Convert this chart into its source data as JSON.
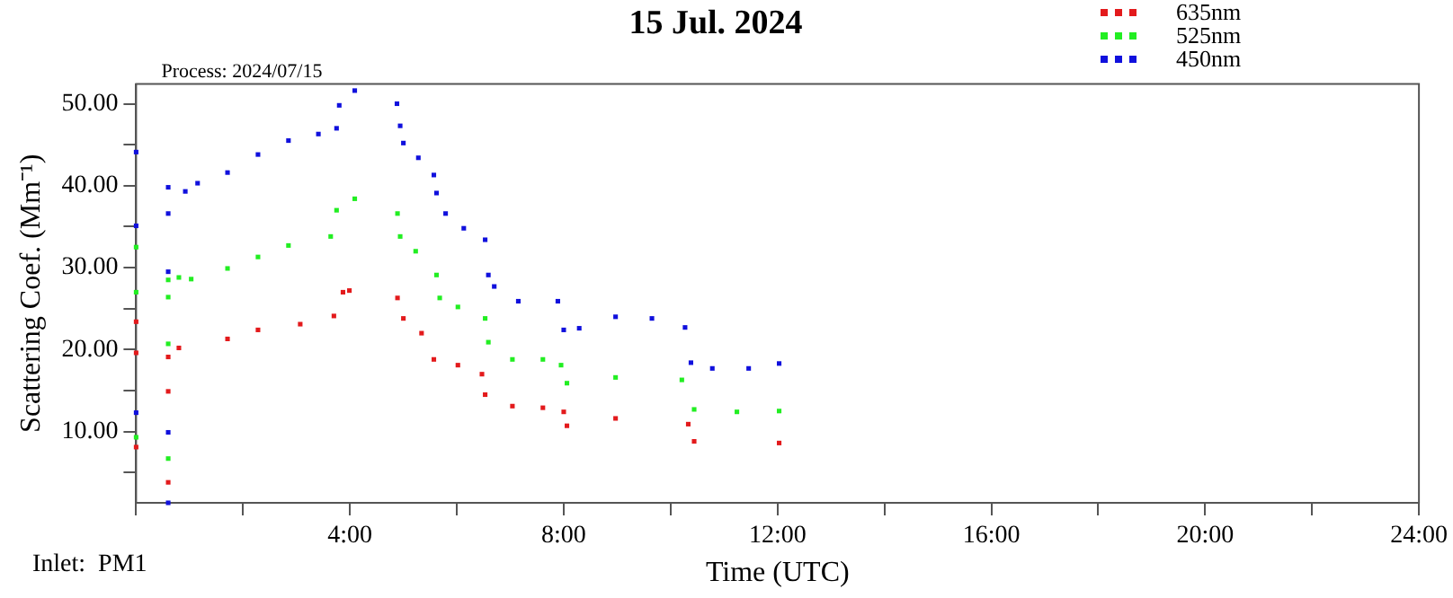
{
  "chart_data": {
    "type": "scatter",
    "title": "15 Jul. 2024",
    "xlabel": "Time (UTC)",
    "ylabel": "Scattering Coef. (Mm⁻¹)",
    "annotations": [
      "Process: 2024/07/15",
      "Inlet:  PM1"
    ],
    "xlim": [
      0,
      24
    ],
    "xticks": [
      {
        "value": 0,
        "label": null
      },
      {
        "value": 2,
        "label": null
      },
      {
        "value": 4,
        "label": "4:00"
      },
      {
        "value": 6,
        "label": null
      },
      {
        "value": 8,
        "label": "8:00"
      },
      {
        "value": 10,
        "label": null
      },
      {
        "value": 12,
        "label": "12:00"
      },
      {
        "value": 14,
        "label": null
      },
      {
        "value": 16,
        "label": "16:00"
      },
      {
        "value": 18,
        "label": null
      },
      {
        "value": 20,
        "label": "20:00"
      },
      {
        "value": 22,
        "label": null
      },
      {
        "value": 24,
        "label": "24:00"
      }
    ],
    "ylim": [
      1.3,
      52.4
    ],
    "yticks": [
      {
        "value": 5,
        "label": null
      },
      {
        "value": 10,
        "label": "10.00"
      },
      {
        "value": 15,
        "label": null
      },
      {
        "value": 20,
        "label": "20.00"
      },
      {
        "value": 25,
        "label": null
      },
      {
        "value": 30,
        "label": "30.00"
      },
      {
        "value": 35,
        "label": null
      },
      {
        "value": 40,
        "label": "40.00"
      },
      {
        "value": 45,
        "label": null
      },
      {
        "value": 50,
        "label": "50.00"
      }
    ],
    "grid": false,
    "legend": "top right",
    "marker": "square",
    "series": [
      {
        "name": "635nm",
        "color": "#e31a1c",
        "x": [
          0,
          0,
          0,
          0.6,
          0.6,
          0.6,
          0.8,
          1.71,
          2.28,
          3.07,
          3.7,
          3.87,
          3.99,
          4.89,
          5.0,
          5.34,
          5.57,
          6.02,
          6.47,
          6.53,
          7.04,
          7.61,
          8.0,
          8.06,
          8.97,
          10.33,
          10.44,
          12.03
        ],
        "values": [
          8.1,
          19.6,
          23.4,
          3.8,
          14.9,
          19.1,
          20.2,
          21.3,
          22.4,
          23.1,
          24.1,
          27.0,
          27.2,
          26.3,
          23.8,
          22.0,
          18.8,
          18.1,
          17.0,
          14.5,
          13.1,
          12.9,
          12.4,
          10.7,
          11.6,
          10.9,
          8.8,
          8.6
        ]
      },
      {
        "name": "525nm",
        "color": "#22ee22",
        "x": [
          0,
          0,
          0,
          0.6,
          0.6,
          0.6,
          0.6,
          0.8,
          1.03,
          1.71,
          2.28,
          2.85,
          3.64,
          3.75,
          4.09,
          4.89,
          4.94,
          5.23,
          5.62,
          5.68,
          6.02,
          6.53,
          6.59,
          7.04,
          7.61,
          7.95,
          8.06,
          8.97,
          10.21,
          10.44,
          11.24,
          12.03
        ],
        "values": [
          9.3,
          27.0,
          32.5,
          6.7,
          20.7,
          26.4,
          28.5,
          28.8,
          28.6,
          29.9,
          31.3,
          32.7,
          33.8,
          37.0,
          38.4,
          36.6,
          33.8,
          32.0,
          29.1,
          26.3,
          25.2,
          23.8,
          20.9,
          18.8,
          18.8,
          18.1,
          15.9,
          16.6,
          16.3,
          12.7,
          12.4,
          12.5
        ]
      },
      {
        "name": "450nm",
        "color": "#1010dd",
        "x": [
          0,
          0,
          0,
          0.6,
          0.6,
          0.6,
          0.6,
          0.6,
          0.92,
          1.15,
          1.71,
          2.28,
          2.85,
          3.41,
          3.75,
          3.8,
          4.09,
          4.88,
          4.94,
          5.0,
          5.28,
          5.57,
          5.62,
          5.79,
          6.13,
          6.53,
          6.59,
          6.7,
          7.15,
          7.89,
          8.0,
          8.29,
          8.97,
          9.65,
          10.27,
          10.38,
          10.78,
          11.46,
          12.03
        ],
        "values": [
          12.3,
          35.1,
          44.1,
          1.3,
          9.9,
          29.5,
          36.6,
          39.8,
          39.3,
          40.3,
          41.6,
          43.8,
          45.5,
          46.3,
          47.0,
          49.8,
          51.6,
          50.0,
          47.3,
          45.2,
          43.4,
          41.3,
          39.1,
          36.6,
          34.8,
          33.4,
          29.1,
          27.7,
          25.9,
          25.9,
          22.4,
          22.6,
          24.0,
          23.8,
          22.7,
          18.4,
          17.7,
          17.7,
          18.3
        ]
      }
    ]
  }
}
